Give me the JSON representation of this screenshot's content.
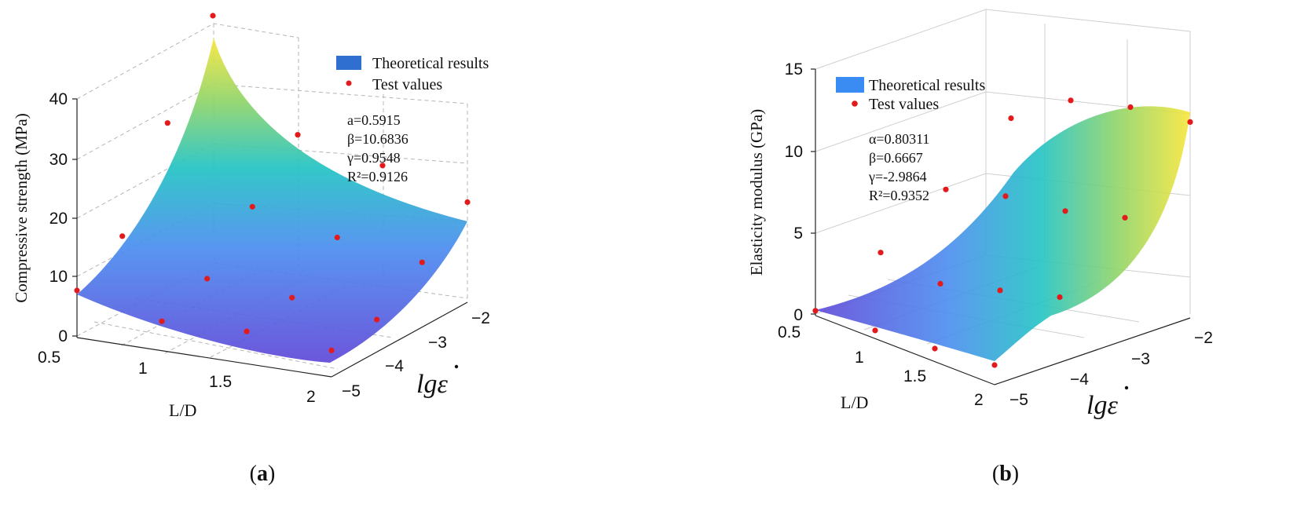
{
  "chart_data": [
    {
      "type": "surface",
      "panel_label": "a",
      "ylabel": "Compressive strength (MPa)",
      "xlabel": "L/D",
      "zlabel_math": "lg",
      "zlabel_symbol": "ε",
      "legend": {
        "surface": "Theoretical results",
        "points": "Test values",
        "placement": "top-right"
      },
      "params": [
        "a=0.5915",
        "β=10.6836",
        "γ=0.9548",
        "R²=0.9126"
      ],
      "ld_ticks": [
        "0.5",
        "1",
        "1.5",
        "2"
      ],
      "lg_ticks": [
        "−2",
        "−3",
        "−4",
        "−5"
      ],
      "z_ticks": [
        "0",
        "10",
        "20",
        "30",
        "40"
      ],
      "ld_range": [
        0.5,
        2
      ],
      "lg_range": [
        -5,
        -2
      ],
      "z_range": [
        0,
        40
      ],
      "grid": true,
      "colors": {
        "low": "#5a4fd6",
        "mid": "#22c3c4",
        "high": "#f5e93c",
        "point": "#e31a1c"
      },
      "test_values": [
        {
          "ld": 0.5,
          "lg": -5,
          "v": 8.0
        },
        {
          "ld": 0.5,
          "lg": -4,
          "v": 13.0
        },
        {
          "ld": 0.5,
          "lg": -3,
          "v": 28.0
        },
        {
          "ld": 0.5,
          "lg": -2,
          "v": 42.0
        },
        {
          "ld": 1.0,
          "lg": -5,
          "v": 5.0
        },
        {
          "ld": 1.0,
          "lg": -4,
          "v": 8.0
        },
        {
          "ld": 1.0,
          "lg": -3,
          "v": 16.0
        },
        {
          "ld": 1.0,
          "lg": -2,
          "v": 24.0
        },
        {
          "ld": 1.5,
          "lg": -5,
          "v": 5.5
        },
        {
          "ld": 1.5,
          "lg": -4,
          "v": 7.0
        },
        {
          "ld": 1.5,
          "lg": -3,
          "v": 13.0
        },
        {
          "ld": 1.5,
          "lg": -2,
          "v": 21.0
        },
        {
          "ld": 2.0,
          "lg": -5,
          "v": 4.5
        },
        {
          "ld": 2.0,
          "lg": -4,
          "v": 5.5
        },
        {
          "ld": 2.0,
          "lg": -3,
          "v": 11.0
        },
        {
          "ld": 2.0,
          "lg": -2,
          "v": 17.0
        }
      ]
    },
    {
      "type": "surface",
      "panel_label": "b",
      "ylabel": "Elasticity modulus (GPa)",
      "xlabel": "L/D",
      "zlabel_math": "lg",
      "zlabel_symbol": "ε",
      "legend": {
        "surface": "Theoretical results",
        "points": "Test values",
        "placement": "top-left"
      },
      "params": [
        "α=0.80311",
        "β=0.6667",
        "γ=-2.9864",
        "R²=0.9352"
      ],
      "ld_ticks": [
        "0.5",
        "1",
        "1.5",
        "2"
      ],
      "lg_ticks": [
        "−2",
        "−3",
        "−4",
        "−5"
      ],
      "z_ticks": [
        "0",
        "5",
        "10",
        "15"
      ],
      "ld_range": [
        0.5,
        2
      ],
      "lg_range": [
        -5,
        -2
      ],
      "z_range": [
        0,
        15
      ],
      "grid": true,
      "colors": {
        "low": "#5a4fd6",
        "mid": "#22c3c4",
        "high": "#f5e93c",
        "point": "#e31a1c"
      },
      "test_values": [
        {
          "ld": 0.5,
          "lg": -5,
          "v": 0.3
        },
        {
          "ld": 0.5,
          "lg": -4,
          "v": 2.5
        },
        {
          "ld": 0.5,
          "lg": -3,
          "v": 5.0
        },
        {
          "ld": 0.5,
          "lg": -2,
          "v": 8.0
        },
        {
          "ld": 1.0,
          "lg": -5,
          "v": 0.5
        },
        {
          "ld": 1.0,
          "lg": -4,
          "v": 2.0
        },
        {
          "ld": 1.0,
          "lg": -3,
          "v": 6.0
        },
        {
          "ld": 1.0,
          "lg": -2,
          "v": 10.5
        },
        {
          "ld": 1.5,
          "lg": -5,
          "v": 0.8
        },
        {
          "ld": 1.5,
          "lg": -4,
          "v": 3.0
        },
        {
          "ld": 1.5,
          "lg": -3,
          "v": 6.5
        },
        {
          "ld": 1.5,
          "lg": -2,
          "v": 11.5
        },
        {
          "ld": 2.0,
          "lg": -5,
          "v": 1.2
        },
        {
          "ld": 2.0,
          "lg": -4,
          "v": 4.0
        },
        {
          "ld": 2.0,
          "lg": -3,
          "v": 7.5
        },
        {
          "ld": 2.0,
          "lg": -2,
          "v": 12.0
        }
      ]
    }
  ]
}
